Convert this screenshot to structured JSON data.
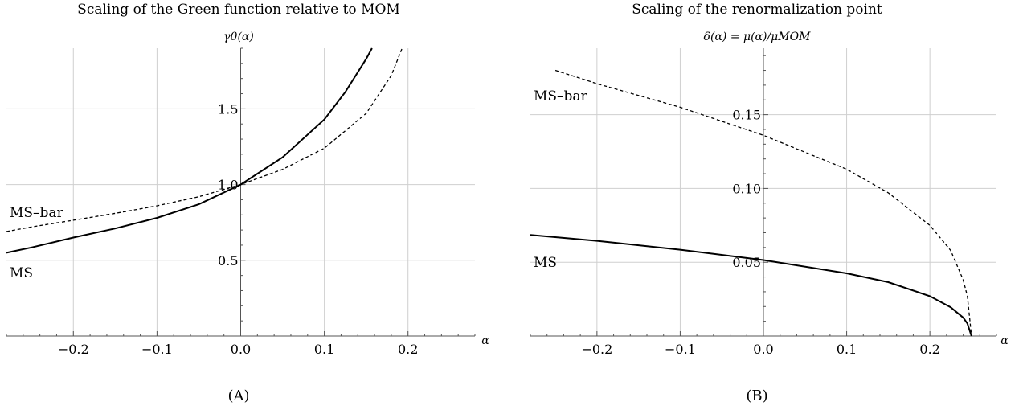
{
  "chart_data": [
    {
      "type": "line",
      "panel_caption": "(A)",
      "title": "Scaling of the Green function relative to MOM",
      "xlabel": "α",
      "ylabel": "γ0(α)",
      "xlim": [
        -0.28,
        0.28
      ],
      "ylim": [
        0.0,
        1.9
      ],
      "x_ticks": [
        -0.2,
        -0.1,
        0.0,
        0.1,
        0.2
      ],
      "x_tick_labels": [
        "−0.2",
        "−0.1",
        "0.0",
        "0.1",
        "0.2"
      ],
      "y_ticks": [
        0.5,
        1.0,
        1.5
      ],
      "y_tick_labels": [
        "0.5",
        "1.0",
        "1.5"
      ],
      "grid": true,
      "series": [
        {
          "name": "MS",
          "style": "solid",
          "x": [
            -0.28,
            -0.25,
            -0.2,
            -0.15,
            -0.1,
            -0.05,
            0.0,
            0.05,
            0.1,
            0.125,
            0.15,
            0.157
          ],
          "y": [
            0.55,
            0.585,
            0.65,
            0.71,
            0.78,
            0.87,
            1.0,
            1.18,
            1.43,
            1.61,
            1.83,
            1.9
          ]
        },
        {
          "name": "MS–bar",
          "style": "dashed",
          "x": [
            -0.28,
            -0.25,
            -0.2,
            -0.15,
            -0.1,
            -0.05,
            0.0,
            0.05,
            0.1,
            0.15,
            0.18,
            0.193
          ],
          "y": [
            0.69,
            0.72,
            0.765,
            0.81,
            0.86,
            0.92,
            1.0,
            1.1,
            1.24,
            1.47,
            1.72,
            1.9
          ]
        }
      ]
    },
    {
      "type": "line",
      "panel_caption": "(B)",
      "title": "Scaling of the renormalization point",
      "xlabel": "α",
      "ylabel": "δ(α) = μ(α)/μMOM",
      "xlim": [
        -0.28,
        0.28
      ],
      "ylim": [
        0.0,
        0.195
      ],
      "x_ticks": [
        -0.2,
        -0.1,
        0.0,
        0.1,
        0.2
      ],
      "x_tick_labels": [
        "−0.2",
        "−0.1",
        "0.0",
        "0.1",
        "0.2"
      ],
      "y_ticks": [
        0.05,
        0.1,
        0.15
      ],
      "y_tick_labels": [
        "0.05",
        "0.10",
        "0.15"
      ],
      "grid": true,
      "series": [
        {
          "name": "MS",
          "style": "solid",
          "x": [
            -0.28,
            -0.2,
            -0.1,
            0.0,
            0.1,
            0.15,
            0.2,
            0.225,
            0.24,
            0.245,
            0.25
          ],
          "y": [
            0.0685,
            0.0645,
            0.0585,
            0.0515,
            0.0425,
            0.0365,
            0.027,
            0.0195,
            0.0125,
            0.0085,
            0.0
          ]
        },
        {
          "name": "MS–bar",
          "style": "dashed",
          "x": [
            -0.25,
            -0.2,
            -0.1,
            0.0,
            0.1,
            0.15,
            0.2,
            0.225,
            0.24,
            0.245,
            0.25
          ],
          "y": [
            0.18,
            0.171,
            0.155,
            0.136,
            0.113,
            0.097,
            0.075,
            0.058,
            0.038,
            0.027,
            0.0
          ]
        }
      ]
    }
  ]
}
